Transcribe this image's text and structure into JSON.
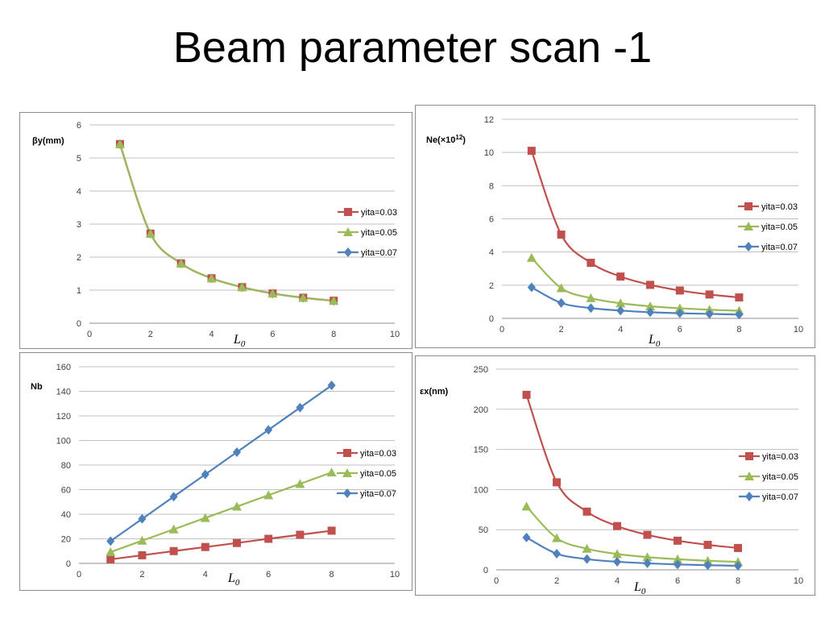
{
  "slide": {
    "title": "Beam parameter scan -1"
  },
  "colors": {
    "yita=0.03": "#c0504d",
    "yita=0.05": "#9bbb59",
    "yita=0.07": "#4f81bd"
  },
  "chart_data": [
    {
      "type": "line",
      "ylabel": "βy(mm)",
      "xlabel": "L",
      "xlabel_sub": "0",
      "xlim": [
        0,
        10
      ],
      "xticks": [
        0,
        2,
        4,
        6,
        8,
        10
      ],
      "ylim": [
        0,
        6
      ],
      "yticks": [
        0,
        1,
        2,
        3,
        4,
        5,
        6
      ],
      "grid": true,
      "legend": "right",
      "x": [
        1,
        2,
        3,
        4,
        5,
        6,
        7,
        8
      ],
      "series": [
        {
          "name": "yita=0.03",
          "marker": "square",
          "values": [
            5.42,
            2.71,
            1.81,
            1.36,
            1.09,
            0.9,
            0.77,
            0.68
          ]
        },
        {
          "name": "yita=0.05",
          "marker": "triangle",
          "values": [
            5.42,
            2.71,
            1.81,
            1.36,
            1.09,
            0.9,
            0.77,
            0.68
          ]
        },
        {
          "name": "yita=0.07",
          "marker": "diamond",
          "values": [
            5.42,
            2.71,
            1.81,
            1.36,
            1.09,
            0.9,
            0.77,
            0.68
          ]
        }
      ]
    },
    {
      "type": "line",
      "ylabel": "Ne(×10",
      "ylabel_sup": "12",
      "ylabel_end": ")",
      "xlabel": "L",
      "xlabel_sub": "0",
      "xlim": [
        0,
        10
      ],
      "xticks": [
        0,
        2,
        4,
        6,
        8,
        10
      ],
      "ylim": [
        0,
        12
      ],
      "yticks": [
        0,
        2,
        4,
        6,
        8,
        10,
        12
      ],
      "grid": true,
      "legend": "right",
      "x": [
        1,
        2,
        3,
        4,
        5,
        6,
        7,
        8
      ],
      "series": [
        {
          "name": "yita=0.03",
          "marker": "square",
          "values": [
            10.1,
            5.05,
            3.35,
            2.52,
            2.02,
            1.68,
            1.44,
            1.26
          ]
        },
        {
          "name": "yita=0.05",
          "marker": "triangle",
          "values": [
            3.65,
            1.82,
            1.22,
            0.91,
            0.73,
            0.61,
            0.52,
            0.46
          ]
        },
        {
          "name": "yita=0.07",
          "marker": "diamond",
          "values": [
            1.87,
            0.93,
            0.62,
            0.47,
            0.37,
            0.31,
            0.27,
            0.23
          ]
        }
      ]
    },
    {
      "type": "line",
      "ylabel": "Nb",
      "xlabel": "L",
      "xlabel_sub": "0",
      "xlim": [
        0,
        10
      ],
      "xticks": [
        0,
        2,
        4,
        6,
        8,
        10
      ],
      "ylim": [
        0,
        160
      ],
      "yticks": [
        0,
        20,
        40,
        60,
        80,
        100,
        120,
        140,
        160
      ],
      "grid": true,
      "legend": "right",
      "x": [
        1,
        2,
        3,
        4,
        5,
        6,
        7,
        8
      ],
      "series": [
        {
          "name": "yita=0.03",
          "marker": "square",
          "values": [
            3.3,
            6.6,
            10,
            13.3,
            16.6,
            20,
            23.3,
            26.6
          ]
        },
        {
          "name": "yita=0.05",
          "marker": "triangle",
          "values": [
            9.2,
            18.5,
            27.7,
            37,
            46.2,
            55.5,
            64.7,
            74
          ]
        },
        {
          "name": "yita=0.07",
          "marker": "diamond",
          "values": [
            18.1,
            36.2,
            54.3,
            72.4,
            90.5,
            108.6,
            126.7,
            144.8
          ]
        }
      ]
    },
    {
      "type": "line",
      "ylabel": "εx(nm)",
      "xlabel": "L",
      "xlabel_sub": "0",
      "xlim": [
        0,
        10
      ],
      "xticks": [
        0,
        2,
        4,
        6,
        8,
        10
      ],
      "ylim": [
        0,
        250
      ],
      "yticks": [
        0,
        50,
        100,
        150,
        200,
        250
      ],
      "grid": true,
      "legend": "right",
      "x": [
        1,
        2,
        3,
        4,
        5,
        6,
        7,
        8
      ],
      "series": [
        {
          "name": "yita=0.03",
          "marker": "square",
          "values": [
            218,
            109,
            72.5,
            54.5,
            43.6,
            36.3,
            31.1,
            27.2
          ]
        },
        {
          "name": "yita=0.05",
          "marker": "triangle",
          "values": [
            79,
            39.5,
            26.3,
            19.7,
            15.8,
            13.2,
            11.3,
            9.9
          ]
        },
        {
          "name": "yita=0.07",
          "marker": "diamond",
          "values": [
            40.3,
            20.1,
            13.4,
            10.1,
            8.1,
            6.7,
            5.8,
            5
          ]
        }
      ]
    }
  ]
}
